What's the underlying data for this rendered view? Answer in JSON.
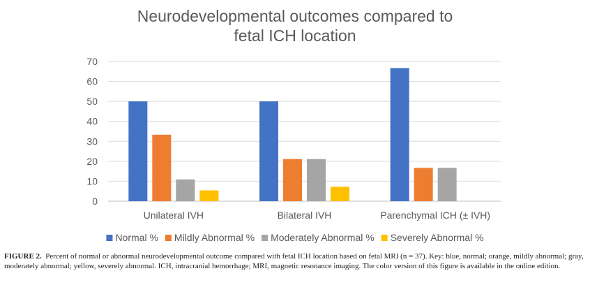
{
  "chart_data": {
    "type": "bar",
    "title_line1": "Neurodevelopmental outcomes compared to",
    "title_line2": "fetal ICH location",
    "categories": [
      "Unilateral IVH",
      "Bilateral IVH",
      "Parenchymal  ICH (± IVH)"
    ],
    "series": [
      {
        "name": "Normal %",
        "color": "#4472C4",
        "values": [
          50,
          50,
          66.7
        ]
      },
      {
        "name": "Mildly Abnormal %",
        "color": "#ED7D31",
        "values": [
          33.3,
          21.1,
          16.7
        ]
      },
      {
        "name": "Moderately Abnormal %",
        "color": "#A5A5A5",
        "values": [
          10.9,
          21.1,
          16.7
        ]
      },
      {
        "name": "Severely Abnormal %",
        "color": "#FFC000",
        "values": [
          5.4,
          7.2,
          0
        ]
      }
    ],
    "ylim": [
      0,
      70
    ],
    "yticks": [
      "0",
      "10",
      "20",
      "30",
      "40",
      "50",
      "60",
      "70"
    ],
    "grid": true,
    "legend_position": "bottom"
  },
  "caption": {
    "label": "FIGURE 2.",
    "text": "Percent of normal or abnormal neurodevelopmental outcome compared with fetal ICH location based on fetal MRI (n = 37). Key: blue, normal; orange, mildly abnormal; gray, moderately abnormal; yellow, severely abnormal. ICH, intracranial hemorrhage; MRI, magnetic resonance imaging. The color version of this figure is available in the online edition."
  }
}
